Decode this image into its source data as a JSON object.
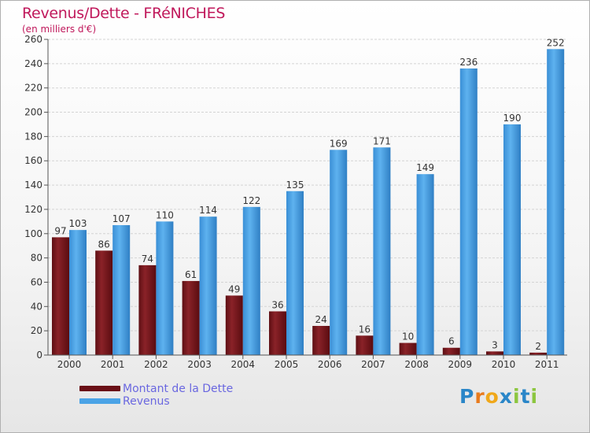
{
  "title": "Revenus/Dette - FRéNICHES",
  "subtitle": "(en milliers d'€)",
  "legend": {
    "items": [
      {
        "label": "Montant de la Dette",
        "color": "#7a1a1f"
      },
      {
        "label": "Revenus",
        "color": "#4aa3e6"
      }
    ]
  },
  "logo": {
    "letters": [
      "P",
      "r",
      "o",
      "x",
      "i",
      "t",
      "i"
    ],
    "colors": [
      "#2a86c8",
      "#e87b1e",
      "#f0a81a",
      "#2a86c8",
      "#8cc63f",
      "#2a86c8",
      "#8cc63f"
    ]
  },
  "chart_data": {
    "type": "bar",
    "categories": [
      "2000",
      "2001",
      "2002",
      "2003",
      "2004",
      "2005",
      "2006",
      "2007",
      "2008",
      "2009",
      "2010",
      "2011"
    ],
    "series": [
      {
        "name": "Montant de la Dette",
        "values": [
          97,
          86,
          74,
          61,
          49,
          36,
          24,
          16,
          10,
          6,
          3,
          2
        ],
        "color": "#7a1a1f"
      },
      {
        "name": "Revenus",
        "values": [
          103,
          107,
          110,
          114,
          122,
          135,
          169,
          171,
          149,
          236,
          190,
          252
        ],
        "color": "#4aa3e6"
      }
    ],
    "ylim": [
      0,
      260
    ],
    "yticks": [
      0,
      20,
      40,
      60,
      80,
      100,
      120,
      140,
      160,
      180,
      200,
      220,
      240,
      260
    ],
    "grid": true
  }
}
